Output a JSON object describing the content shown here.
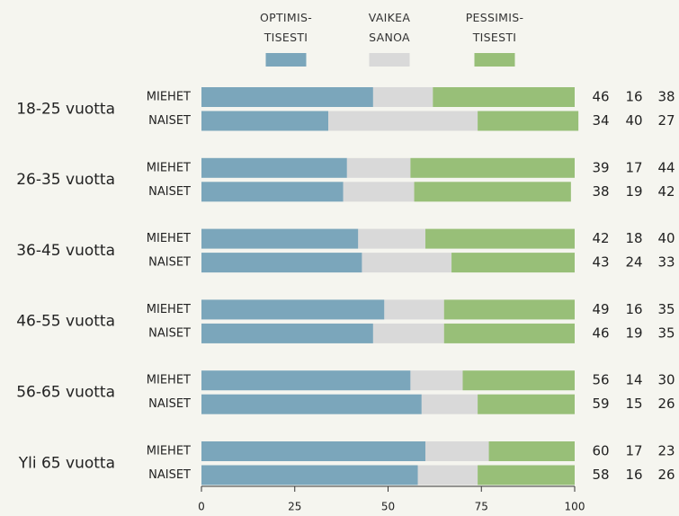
{
  "chart_data": {
    "type": "stacked-bar-horizontal",
    "groups": [
      "18-25 vuotta",
      "26-35 vuotta",
      "36-45 vuotta",
      "46-55 vuotta",
      "56-65 vuotta",
      "Yli 65 vuotta"
    ],
    "categories": [
      "MIEHET",
      "NAISET",
      "MIEHET",
      "NAISET",
      "MIEHET",
      "NAISET",
      "MIEHET",
      "NAISET",
      "MIEHET",
      "NAISET",
      "MIEHET",
      "NAISET"
    ],
    "series": [
      {
        "name": "OPTIMIS-TISESTI",
        "color": "#7ba6bb",
        "values": [
          46,
          34,
          39,
          38,
          42,
          43,
          49,
          46,
          56,
          59,
          60,
          58
        ]
      },
      {
        "name": "VAIKEA SANOA",
        "color": "#d9d9d9",
        "values": [
          16,
          40,
          17,
          19,
          18,
          24,
          16,
          19,
          14,
          15,
          17,
          16
        ]
      },
      {
        "name": "PESSIMIS-TISESTI",
        "color": "#98bf78",
        "values": [
          38,
          27,
          44,
          42,
          40,
          33,
          35,
          35,
          30,
          26,
          23,
          26
        ]
      }
    ],
    "xlim": [
      0,
      100
    ],
    "xticks": [
      0,
      25,
      50,
      75,
      100
    ]
  }
}
